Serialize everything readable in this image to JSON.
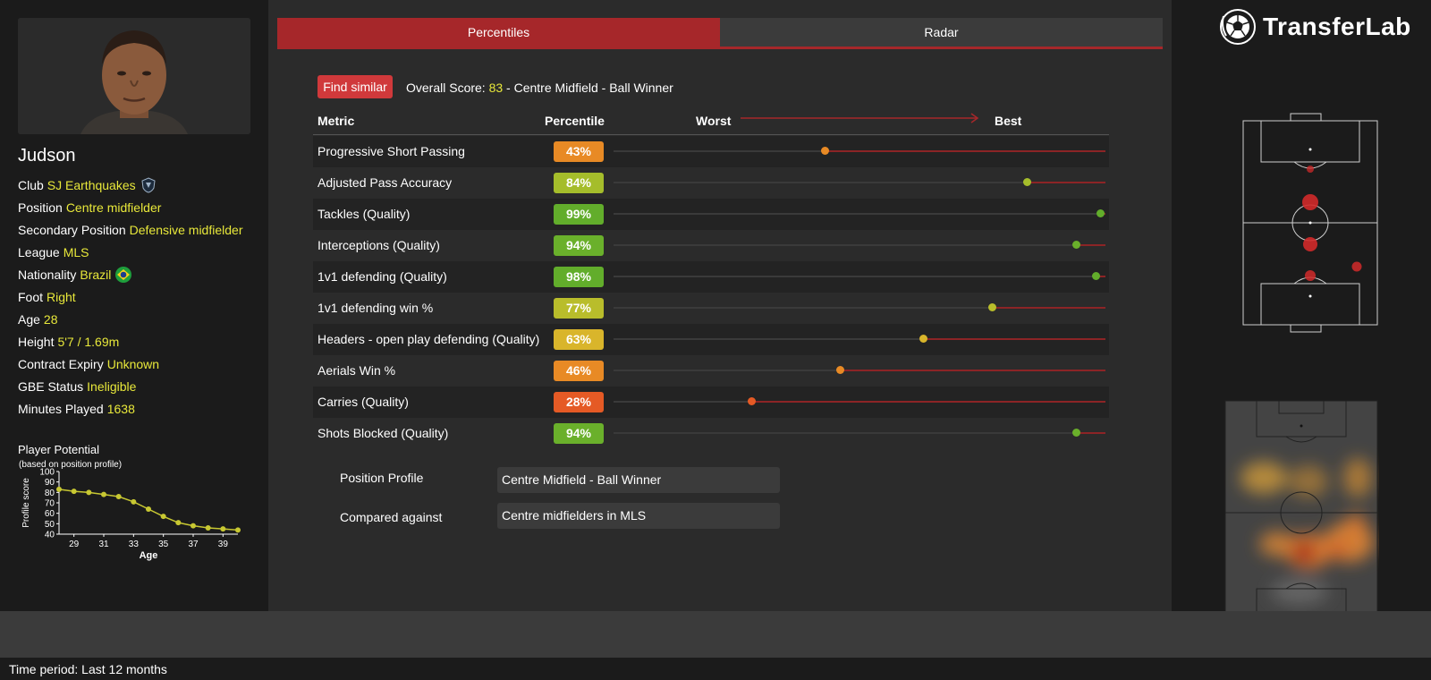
{
  "player": {
    "name": "Judson",
    "info": [
      {
        "label": "Club",
        "value": "SJ Earthquakes",
        "icon": "club-crest-icon"
      },
      {
        "label": "Position",
        "value": "Centre midfielder"
      },
      {
        "label": "Secondary Position",
        "value": "Defensive midfielder"
      },
      {
        "label": "League",
        "value": "MLS"
      },
      {
        "label": "Nationality",
        "value": "Brazil",
        "icon": "brazil-flag-icon"
      },
      {
        "label": "Foot",
        "value": "Right"
      },
      {
        "label": "Age",
        "value": "28"
      },
      {
        "label": "Height",
        "value": "5'7 / 1.69m"
      },
      {
        "label": "Contract Expiry",
        "value": "Unknown"
      },
      {
        "label": "GBE Status",
        "value": "Ineligible"
      },
      {
        "label": "Minutes Played",
        "value": "1638"
      }
    ]
  },
  "potential": {
    "title": "Player Potential",
    "subtitle": "(based on position profile)",
    "chart_data": {
      "type": "line",
      "title": "Player Potential",
      "xlabel": "Age",
      "ylabel": "Profile score",
      "x": [
        28,
        29,
        30,
        31,
        32,
        33,
        34,
        35,
        36,
        37,
        38,
        39,
        40
      ],
      "values": [
        83,
        81,
        80,
        78,
        76,
        71,
        64,
        57,
        51,
        48,
        46,
        45,
        44
      ],
      "xticks": [
        "29",
        "31",
        "33",
        "35",
        "37",
        "39"
      ],
      "yticks": [
        "100",
        "90",
        "80",
        "70",
        "60",
        "50",
        "40"
      ],
      "ylim": [
        40,
        100
      ],
      "xlim": [
        28,
        40
      ],
      "color": "#c8c832"
    }
  },
  "tabs": {
    "active": "Percentiles",
    "inactive": "Radar"
  },
  "find_similar": "Find similar",
  "overall": {
    "prefix": "Overall Score: ",
    "score": "83",
    "suffix": " - Centre Midfield - Ball Winner"
  },
  "table": {
    "headers": {
      "metric": "Metric",
      "percentile": "Percentile",
      "worst": "Worst",
      "best": "Best"
    },
    "rows": [
      {
        "name": "Progressive Short Passing",
        "pct": "43%",
        "value": 43,
        "color": "#e88a25"
      },
      {
        "name": "Adjusted Pass Accuracy",
        "pct": "84%",
        "value": 84,
        "color": "#a5bd2b"
      },
      {
        "name": "Tackles (Quality)",
        "pct": "99%",
        "value": 99,
        "color": "#62ad2b"
      },
      {
        "name": "Interceptions (Quality)",
        "pct": "94%",
        "value": 94,
        "color": "#6ab02b"
      },
      {
        "name": "1v1 defending (Quality)",
        "pct": "98%",
        "value": 98,
        "color": "#62ad2b"
      },
      {
        "name": "1v1 defending win %",
        "pct": "77%",
        "value": 77,
        "color": "#b9bd2b"
      },
      {
        "name": "Headers - open play defending (Quality)",
        "pct": "63%",
        "value": 63,
        "color": "#d9b52b"
      },
      {
        "name": "Aerials Win %",
        "pct": "46%",
        "value": 46,
        "color": "#e88a25"
      },
      {
        "name": "Carries (Quality)",
        "pct": "28%",
        "value": 28,
        "color": "#e55a25"
      },
      {
        "name": "Shots Blocked (Quality)",
        "pct": "94%",
        "value": 94,
        "color": "#6ab02b"
      }
    ]
  },
  "profile": {
    "position_label": "Position Profile",
    "position_value": "Centre Midfield - Ball Winner",
    "compared_label": "Compared against",
    "compared_value": "Centre midfielders in MLS"
  },
  "brand": {
    "name": "TransferLab"
  },
  "footer": {
    "time_period": "Time period: Last 12 months"
  },
  "colors": {
    "accent": "#a6272a",
    "highlight": "#e8e83a"
  }
}
